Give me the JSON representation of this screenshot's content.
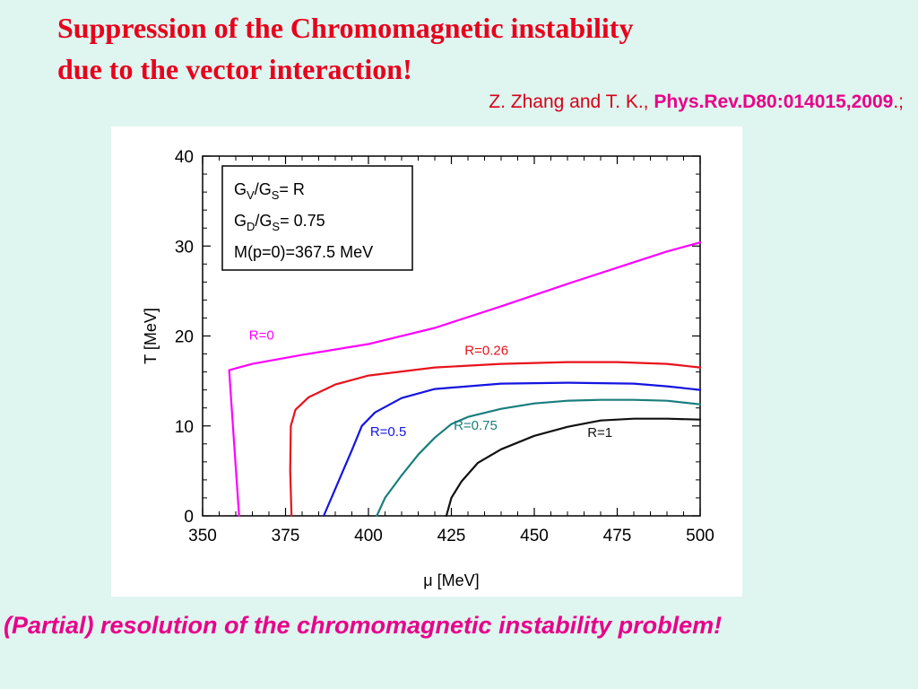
{
  "slide": {
    "title_line1": "Suppression of  the Chromomagnetic instability",
    "title_line2": "due to the vector interaction!",
    "citation_authors": "Z. Zhang and T. K., ",
    "citation_ref": "Phys.Rev.D80:014015,2009",
    "citation_tail": ".;",
    "bottom_note": "(Partial) resolution of the chromomagnetic instability problem!"
  },
  "chart_data": {
    "type": "line",
    "xlabel": "μ [MeV]",
    "ylabel": "T [MeV]",
    "xlim": [
      350,
      500
    ],
    "ylim": [
      0,
      40
    ],
    "xticks": [
      350,
      375,
      400,
      425,
      450,
      475,
      500
    ],
    "yticks": [
      0,
      10,
      20,
      30,
      40
    ],
    "legend_box": {
      "placement": "top-left",
      "lines": [
        {
          "main": "G",
          "sub": "V",
          "main2": "/G",
          "sub2": "S",
          "tail": "=  R"
        },
        {
          "main": "G",
          "sub": "D",
          "main2": "/G",
          "sub2": "S",
          "tail": "= 0.75"
        },
        {
          "main": "M(p=0)=367.5 MeV",
          "sub": "",
          "main2": "",
          "sub2": "",
          "tail": ""
        }
      ]
    },
    "series": [
      {
        "name": "R=0",
        "color": "#ff00ff",
        "label_at": [
          364,
          19.6
        ],
        "x": [
          361,
          359.5,
          358,
          365,
          380,
          400,
          420,
          440,
          460,
          480,
          490,
          500
        ],
        "y": [
          0,
          8,
          16.2,
          16.9,
          17.9,
          19.1,
          20.9,
          23.3,
          25.8,
          28.2,
          29.4,
          30.4
        ]
      },
      {
        "name": "R=0.26",
        "color": "#e8131c",
        "label_at": [
          429,
          17.9
        ],
        "x": [
          376.8,
          376.4,
          376.6,
          378,
          382,
          390,
          400,
          420,
          440,
          460,
          475,
          490,
          500
        ],
        "y": [
          0,
          5,
          10,
          11.8,
          13.2,
          14.6,
          15.6,
          16.5,
          16.9,
          17.1,
          17.1,
          16.9,
          16.5
        ]
      },
      {
        "name": "R=0.5",
        "color": "#1414e0",
        "label_at": [
          400.5,
          8.9
        ],
        "x": [
          386.5,
          390,
          395,
          398,
          402,
          410,
          420,
          440,
          460,
          480,
          490,
          500
        ],
        "y": [
          0,
          3,
          7.3,
          10,
          11.5,
          13.1,
          14.1,
          14.7,
          14.8,
          14.7,
          14.4,
          14.0
        ]
      },
      {
        "name": "R=0.75",
        "color": "#1a7d7d",
        "label_at": [
          425.7,
          9.6
        ],
        "x": [
          402.5,
          405,
          410,
          415,
          420,
          425,
          430,
          440,
          450,
          460,
          470,
          480,
          490,
          500
        ],
        "y": [
          0,
          2,
          4.5,
          6.8,
          8.7,
          10.2,
          11.0,
          11.9,
          12.5,
          12.8,
          12.9,
          12.9,
          12.8,
          12.4
        ]
      },
      {
        "name": "R=1",
        "color": "#111111",
        "label_at": [
          466,
          8.8
        ],
        "x": [
          423.5,
          425,
          428,
          433,
          440,
          450,
          460,
          470,
          480,
          490,
          500
        ],
        "y": [
          0,
          2,
          3.8,
          5.9,
          7.4,
          8.9,
          9.9,
          10.6,
          10.8,
          10.8,
          10.7
        ]
      }
    ]
  }
}
